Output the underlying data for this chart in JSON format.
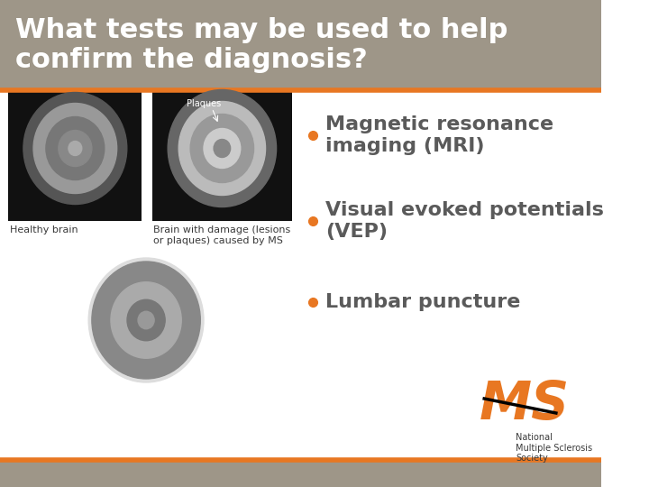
{
  "title": "What tests may be used to help\nconfirm the diagnosis?",
  "title_bg_color": "#9e9688",
  "title_text_color": "#ffffff",
  "content_bg_color": "#ffffff",
  "bottom_bar_color": "#9e9688",
  "orange_line_color": "#e87722",
  "bullet_color": "#e87722",
  "text_color": "#5a5a5a",
  "dark_text_color": "#3a3a3a",
  "bullets": [
    "Magnetic resonance\nimaging (MRI)",
    "Visual evoked potentials\n(VEP)",
    "Lumbar puncture"
  ],
  "bullet_fontsize": 16,
  "title_fontsize": 22,
  "caption1": "Healthy brain",
  "caption2": "Brain with damage (lesions\nor plaques) caused by MS",
  "caption_fontsize": 8,
  "ms_logo_text": "MS",
  "ms_logo_subtext": "National\nMultiple Sclerosis\nSociety",
  "logo_color": "#e87722"
}
